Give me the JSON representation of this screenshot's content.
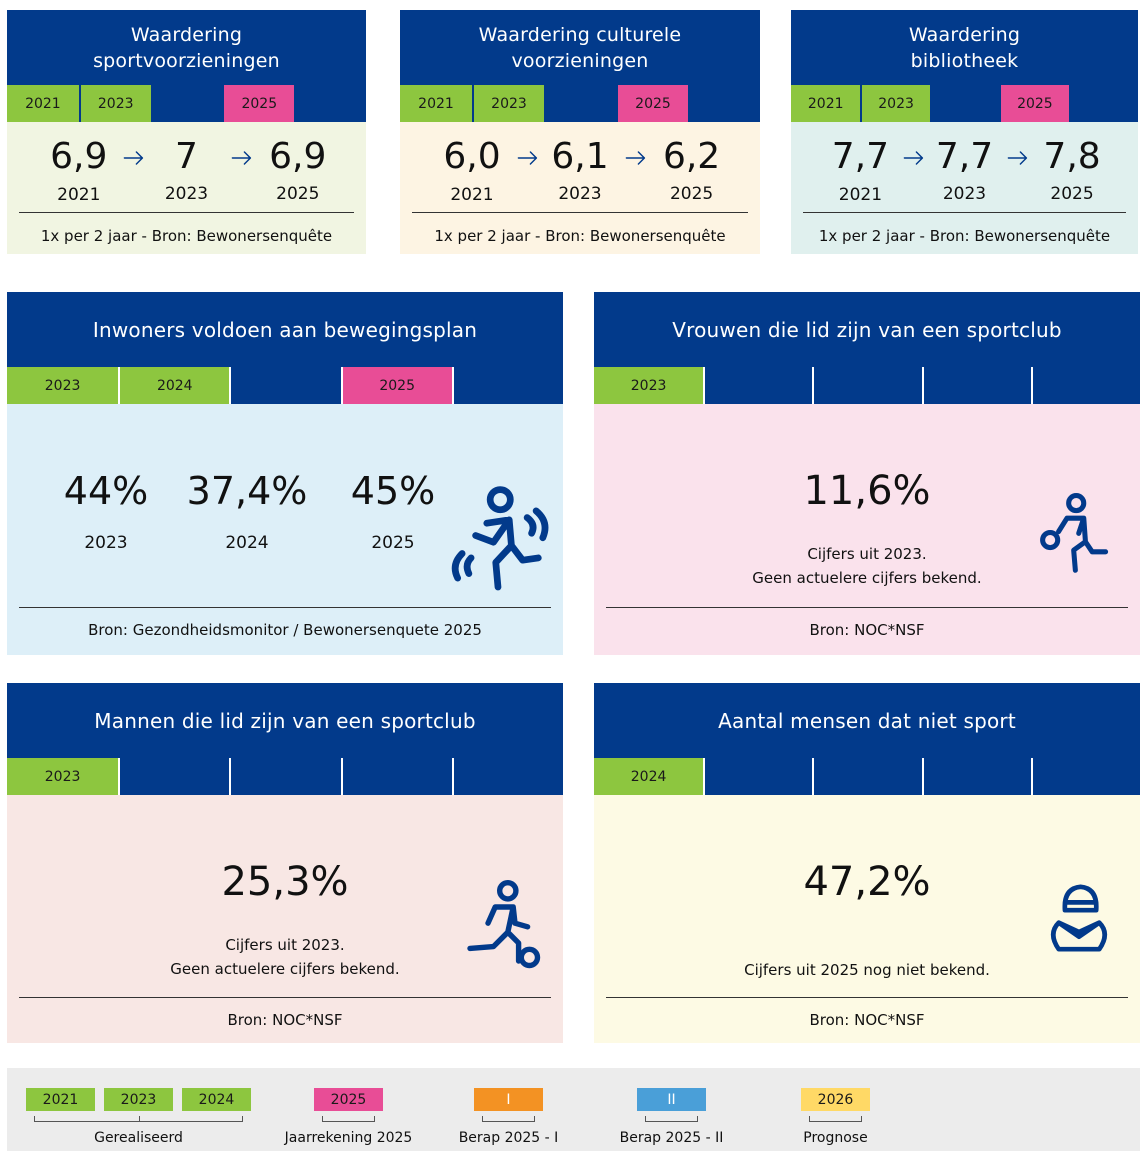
{
  "top_cards": [
    {
      "title": [
        "Waardering",
        "sportvoorzieningen"
      ],
      "bg": "#f1f5e2",
      "tabs": [
        {
          "label": "2021",
          "color": "#8dc63f"
        },
        {
          "label": "2023",
          "color": "#8dc63f"
        },
        {
          "label": "2025",
          "color": "#e84d96"
        }
      ],
      "values": [
        "6,9",
        "7",
        "6,9"
      ],
      "years": [
        "2021",
        "2023",
        "2025"
      ],
      "source": "1x per 2 jaar - Bron: Bewonersenquête"
    },
    {
      "title": [
        "Waardering culturele",
        "voorzieningen"
      ],
      "bg": "#fdf4e3",
      "tabs": [
        {
          "label": "2021",
          "color": "#8dc63f"
        },
        {
          "label": "2023",
          "color": "#8dc63f"
        },
        {
          "label": "2025",
          "color": "#e84d96"
        }
      ],
      "values": [
        "6,0",
        "6,1",
        "6,2"
      ],
      "years": [
        "2021",
        "2023",
        "2025"
      ],
      "source": "1x per 2 jaar - Bron: Bewonersenquête"
    },
    {
      "title": [
        "Waardering",
        "bibliotheek"
      ],
      "bg": "#e0f0ee",
      "tabs": [
        {
          "label": "2021",
          "color": "#8dc63f"
        },
        {
          "label": "2023",
          "color": "#8dc63f"
        },
        {
          "label": "2025",
          "color": "#e84d96"
        }
      ],
      "values": [
        "7,7",
        "7,7",
        "7,8"
      ],
      "years": [
        "2021",
        "2023",
        "2025"
      ],
      "source": "1x per 2 jaar - Bron: Bewonersenquête"
    }
  ],
  "cards": [
    {
      "title": "Inwoners voldoen aan bewegingsplan",
      "bg": "#ddeff8",
      "tabs": [
        {
          "label": "2023",
          "color": "#8dc63f"
        },
        {
          "label": "2024",
          "color": "#8dc63f"
        },
        {
          "label": "2025",
          "color": "#e84d96"
        }
      ],
      "values": [
        "44%",
        "37,4%",
        "45%"
      ],
      "years": [
        "2023",
        "2024",
        "2025"
      ],
      "source": "Bron: Gezondheidsmonitor / Bewonersenquete 2025"
    },
    {
      "title": "Vrouwen die lid zijn van een sportclub",
      "bg": "#fae2ec",
      "tabs": [
        {
          "label": "2023",
          "color": "#8dc63f"
        }
      ],
      "values": [
        "11,6%"
      ],
      "note": [
        "Cijfers uit 2023.",
        "Geen actuelere cijfers bekend."
      ],
      "source": "Bron: NOC*NSF"
    },
    {
      "title": "Mannen die lid zijn van een sportclub",
      "bg": "#f8e7e4",
      "tabs": [
        {
          "label": "2023",
          "color": "#8dc63f"
        }
      ],
      "values": [
        "25,3%"
      ],
      "note": [
        "Cijfers uit 2023.",
        "Geen actuelere cijfers bekend."
      ],
      "source": "Bron: NOC*NSF"
    },
    {
      "title": "Aantal mensen dat niet sport",
      "bg": "#fdfae4",
      "tabs": [
        {
          "label": "2024",
          "color": "#8dc63f"
        }
      ],
      "values": [
        "47,2%"
      ],
      "note": [
        "Cijfers uit 2025 nog niet bekend."
      ],
      "source": "Bron: NOC*NSF"
    }
  ],
  "legend": [
    {
      "tabs": [
        {
          "label": "2021",
          "color": "#8dc63f"
        },
        {
          "label": "2023",
          "color": "#8dc63f"
        },
        {
          "label": "2024",
          "color": "#8dc63f"
        }
      ],
      "label": "Gerealiseerd"
    },
    {
      "tabs": [
        {
          "label": "2025",
          "color": "#e84d96"
        }
      ],
      "label": "Jaarrekening 2025"
    },
    {
      "tabs": [
        {
          "label": "I",
          "color": "#f39223"
        }
      ],
      "label": "Berap 2025 - I"
    },
    {
      "tabs": [
        {
          "label": "II",
          "color": "#4a9fd8"
        }
      ],
      "label": "Berap 2025 - II"
    },
    {
      "tabs": [
        {
          "label": "2026",
          "color": "#ffd966"
        }
      ],
      "label": "Prognose"
    }
  ]
}
